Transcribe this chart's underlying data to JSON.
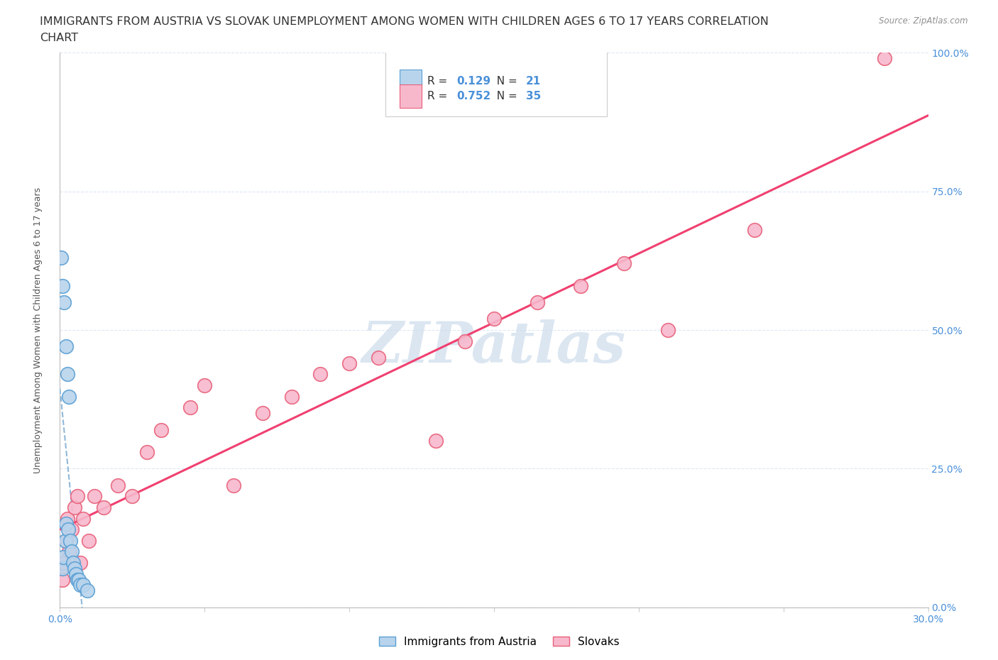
{
  "title_line1": "IMMIGRANTS FROM AUSTRIA VS SLOVAK UNEMPLOYMENT AMONG WOMEN WITH CHILDREN AGES 6 TO 17 YEARS CORRELATION",
  "title_line2": "CHART",
  "source_text": "Source: ZipAtlas.com",
  "ylabel_label": "Unemployment Among Women with Children Ages 6 to 17 years",
  "ytick_values": [
    0,
    25,
    50,
    75,
    100
  ],
  "xtick_values": [
    0,
    5,
    10,
    15,
    20,
    25,
    30
  ],
  "watermark": "ZIPatlas",
  "legend_austria_label": "Immigrants from Austria",
  "legend_slovak_label": "Slovaks",
  "austria_R": 0.129,
  "austria_N": 21,
  "slovak_R": 0.752,
  "slovak_N": 35,
  "austria_color": "#b8d4ec",
  "austria_edge_color": "#5a9fd4",
  "slovak_color": "#f7b8cc",
  "slovak_edge_color": "#e8607a",
  "austria_line_color": "#90b8d8",
  "slovak_line_color": "#f04070",
  "austria_x": [
    0.05,
    0.08,
    0.1,
    0.12,
    0.15,
    0.18,
    0.2,
    0.22,
    0.25,
    0.28,
    0.3,
    0.35,
    0.4,
    0.45,
    0.5,
    0.55,
    0.6,
    0.65,
    0.7,
    0.8,
    0.95
  ],
  "austria_y": [
    63,
    58,
    7,
    9,
    55,
    12,
    47,
    15,
    42,
    14,
    38,
    12,
    10,
    8,
    7,
    6,
    5,
    5,
    4,
    4,
    3
  ],
  "slovak_x": [
    0.05,
    0.1,
    0.15,
    0.2,
    0.25,
    0.3,
    0.4,
    0.5,
    0.6,
    0.7,
    0.8,
    1.0,
    1.2,
    1.5,
    2.0,
    2.5,
    3.0,
    3.5,
    4.5,
    5.0,
    6.0,
    7.0,
    8.0,
    9.0,
    10.0,
    11.0,
    13.0,
    14.0,
    15.0,
    16.5,
    18.0,
    19.5,
    21.0,
    24.0,
    28.5
  ],
  "slovak_y": [
    7,
    5,
    8,
    12,
    16,
    10,
    14,
    18,
    20,
    8,
    16,
    12,
    20,
    18,
    22,
    20,
    28,
    32,
    36,
    40,
    22,
    35,
    38,
    42,
    44,
    45,
    30,
    48,
    52,
    55,
    58,
    62,
    50,
    68,
    99
  ],
  "background_color": "#ffffff",
  "grid_color": "#dce8f5",
  "title_fontsize": 11.5,
  "axis_label_fontsize": 9,
  "tick_fontsize": 10,
  "legend_fontsize": 11,
  "watermark_color": "#ccdcec",
  "watermark_fontsize": 58,
  "title_color": "#333333",
  "tick_color": "#4a90d9",
  "source_color": "#909090"
}
